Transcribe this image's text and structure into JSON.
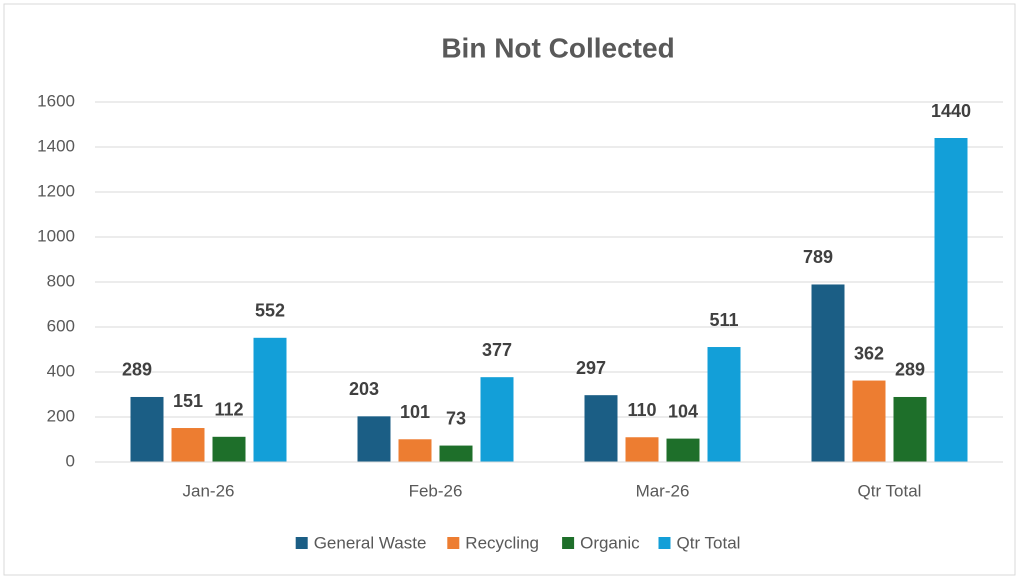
{
  "chart_data": {
    "type": "bar",
    "title": "Bin Not Collected",
    "categories": [
      "Jan-26",
      "Feb-26",
      "Mar-26",
      "Qtr Total"
    ],
    "series": [
      {
        "name": "General Waste",
        "color": "#1b5e85",
        "values": [
          289,
          203,
          297,
          789
        ]
      },
      {
        "name": "Recycling",
        "color": "#ed7d31",
        "values": [
          151,
          101,
          110,
          362
        ]
      },
      {
        "name": "Organic",
        "color": "#1e6f2a",
        "values": [
          112,
          73,
          104,
          289
        ]
      },
      {
        "name": "Qtr Total",
        "color": "#139fd8",
        "values": [
          552,
          377,
          511,
          1440
        ]
      }
    ],
    "ylim": [
      0,
      1600
    ],
    "yticks": [
      0,
      200,
      400,
      600,
      800,
      1000,
      1200,
      1400,
      1600
    ],
    "grid": true,
    "legend": "bottom"
  }
}
